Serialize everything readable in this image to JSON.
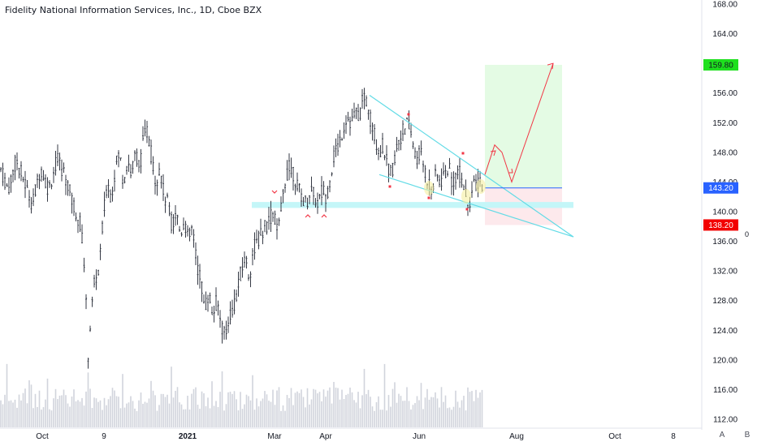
{
  "header": {
    "title": "Fidelity National Information Services, Inc., 1D, Cboe BZX"
  },
  "colors": {
    "candle": "#363a45",
    "volume": "#d1d4dc",
    "trendline": "#62dbe6",
    "support_zone": "#c4f6f8",
    "target_zone": "#e4fbe4",
    "stop_zone": "#fde9ec",
    "entry_line": "#2962ff",
    "arrow": "#f23645",
    "marker": "#f23645",
    "entry_badge": "#2962ff",
    "target_badge": "#1ee01e",
    "stop_badge": "#f20000"
  },
  "price_axis": {
    "ticks": [
      "112.00",
      "116.00",
      "120.00",
      "124.00",
      "128.00",
      "132.00",
      "136.00",
      "140.00",
      "144.00",
      "148.00",
      "152.00",
      "156.00",
      "160.00",
      "164.00",
      "168.00"
    ],
    "right_label": "0"
  },
  "time_axis": {
    "ticks": [
      "Oct",
      "9",
      "2021",
      "Mar",
      "Apr",
      "Jun",
      "Aug",
      "Oct",
      "8"
    ]
  },
  "badges": {
    "target": "159.80",
    "entry": "143.20",
    "stop": "138.20"
  },
  "corner_buttons": {
    "auto": "A",
    "scale": "B"
  },
  "chart_data": {
    "type": "candlestick",
    "title": "Fidelity National Information Services, Inc., 1D, Cboe BZX",
    "symbol": "Fidelity National Information Services, Inc.",
    "interval": "1D",
    "exchange": "Cboe BZX",
    "y_axis": {
      "position": "right",
      "ylim": [
        111,
        168
      ],
      "ticks": [
        112,
        116,
        120,
        124,
        128,
        132,
        136,
        140,
        144,
        148,
        152,
        156,
        160,
        164,
        168
      ]
    },
    "x_axis": {
      "ticks": [
        "Oct",
        "9",
        "2021",
        "Mar",
        "Apr",
        "Jun",
        "Aug",
        "Oct",
        "8"
      ]
    },
    "price_path": [
      [
        0,
        146
      ],
      [
        10,
        143
      ],
      [
        20,
        147
      ],
      [
        30,
        144
      ],
      [
        40,
        141
      ],
      [
        50,
        146
      ],
      [
        60,
        143
      ],
      [
        70,
        147
      ],
      [
        80,
        145
      ],
      [
        90,
        141
      ],
      [
        100,
        138
      ],
      [
        105,
        131
      ],
      [
        108,
        120
      ],
      [
        112,
        126
      ],
      [
        117,
        131
      ],
      [
        122,
        132
      ],
      [
        127,
        139
      ],
      [
        132,
        144
      ],
      [
        137,
        142
      ],
      [
        142,
        146
      ],
      [
        147,
        148
      ],
      [
        152,
        144
      ],
      [
        157,
        147
      ],
      [
        162,
        145
      ],
      [
        167,
        148
      ],
      [
        172,
        146
      ],
      [
        177,
        150
      ],
      [
        182,
        151
      ],
      [
        187,
        147
      ],
      [
        192,
        144
      ],
      [
        197,
        146
      ],
      [
        202,
        142
      ],
      [
        207,
        141
      ],
      [
        212,
        138
      ],
      [
        217,
        140
      ],
      [
        222,
        137
      ],
      [
        227,
        139
      ],
      [
        232,
        136
      ],
      [
        237,
        138
      ],
      [
        242,
        133
      ],
      [
        247,
        131
      ],
      [
        252,
        127
      ],
      [
        257,
        129
      ],
      [
        262,
        126
      ],
      [
        267,
        128
      ],
      [
        272,
        125
      ],
      [
        277,
        123
      ],
      [
        282,
        126
      ],
      [
        287,
        127
      ],
      [
        292,
        129
      ],
      [
        297,
        132
      ],
      [
        302,
        134
      ],
      [
        307,
        131
      ],
      [
        312,
        135
      ],
      [
        317,
        136
      ],
      [
        322,
        137
      ],
      [
        327,
        138
      ],
      [
        332,
        139
      ],
      [
        337,
        140
      ],
      [
        342,
        137
      ],
      [
        347,
        141
      ],
      [
        352,
        145
      ],
      [
        357,
        146
      ],
      [
        362,
        145
      ],
      [
        367,
        143
      ],
      [
        372,
        142
      ],
      [
        377,
        141
      ],
      [
        382,
        143
      ],
      [
        387,
        142
      ],
      [
        392,
        141
      ],
      [
        397,
        143
      ],
      [
        402,
        142
      ],
      [
        407,
        145
      ],
      [
        412,
        148
      ],
      [
        417,
        149
      ],
      [
        422,
        151
      ],
      [
        427,
        153
      ],
      [
        432,
        152
      ],
      [
        437,
        153
      ],
      [
        442,
        153
      ],
      [
        447,
        155
      ],
      [
        452,
        155
      ],
      [
        457,
        152
      ],
      [
        462,
        150
      ],
      [
        467,
        148
      ],
      [
        472,
        149
      ],
      [
        477,
        146
      ],
      [
        482,
        145
      ],
      [
        487,
        148
      ],
      [
        492,
        150
      ],
      [
        497,
        151
      ],
      [
        502,
        152
      ],
      [
        507,
        150
      ],
      [
        512,
        147
      ],
      [
        517,
        148
      ],
      [
        522,
        146
      ],
      [
        527,
        144
      ],
      [
        532,
        143
      ],
      [
        537,
        145
      ],
      [
        542,
        144
      ],
      [
        547,
        145
      ],
      [
        552,
        146
      ],
      [
        557,
        144
      ],
      [
        562,
        145
      ],
      [
        567,
        145
      ],
      [
        572,
        143
      ],
      [
        577,
        141
      ],
      [
        582,
        143
      ],
      [
        587,
        144
      ],
      [
        592,
        144
      ],
      [
        595,
        144
      ]
    ],
    "volume": "relative histogram bars along bottom of price pane",
    "drawings": {
      "falling_wedge_upper": {
        "from": [
          455,
          155.7
        ],
        "to": [
          706,
          136.6
        ]
      },
      "falling_wedge_lower": {
        "from": [
          467,
          145.0
        ],
        "to": [
          706,
          136.6
        ]
      },
      "support_zone": {
        "price_range": [
          140.5,
          141.3
        ]
      },
      "position": {
        "type": "long",
        "entry": 143.2,
        "target": 159.8,
        "stop": 138.2
      },
      "projected_path": [
        [
          597,
          145
        ],
        [
          609,
          149
        ],
        [
          618,
          148
        ],
        [
          630,
          144
        ],
        [
          681,
          160
        ]
      ],
      "pivot_markers": {
        "highs": 5,
        "lows": 6
      }
    },
    "grid": false,
    "legend": "none"
  }
}
